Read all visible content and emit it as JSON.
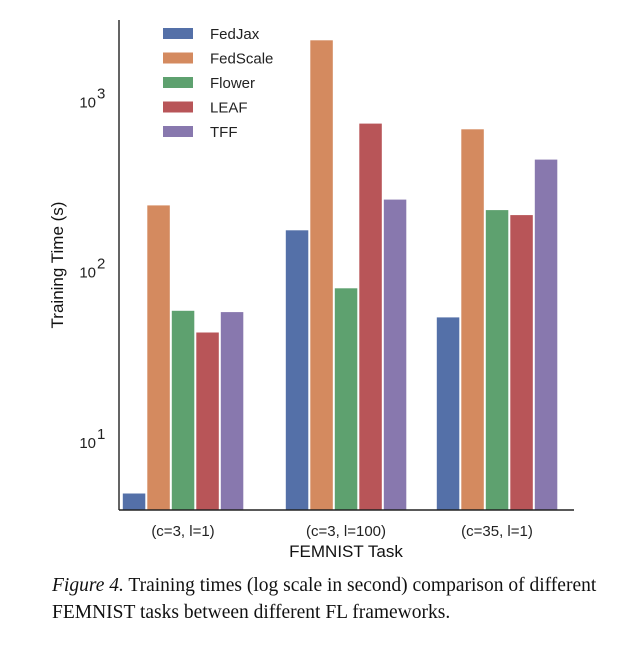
{
  "chart_data": {
    "type": "bar",
    "scale": "log",
    "title": "",
    "xlabel": "FEMNIST Task",
    "ylabel": "Training Time (s)",
    "categories": [
      "(c=3, l=1)",
      "(c=3, l=100)",
      "(c=35, l=1)"
    ],
    "ylim": [
      4,
      3000
    ],
    "yticks": [
      {
        "value": 10,
        "base": "10",
        "exp": "1"
      },
      {
        "value": 100,
        "base": "10",
        "exp": "2"
      },
      {
        "value": 1000,
        "base": "10",
        "exp": "3"
      }
    ],
    "grid": false,
    "legend_position": "top-left",
    "series": [
      {
        "name": "FedJax",
        "color": "#5470a8",
        "values": [
          5,
          175,
          54
        ]
      },
      {
        "name": "FedScale",
        "color": "#d48a5f",
        "values": [
          245,
          2280,
          685
        ]
      },
      {
        "name": "Flower",
        "color": "#5ea16f",
        "values": [
          59,
          80,
          230
        ]
      },
      {
        "name": "LEAF",
        "color": "#b85558",
        "values": [
          44,
          740,
          215
        ]
      },
      {
        "name": "TFF",
        "color": "#8878ae",
        "values": [
          58,
          265,
          455
        ]
      }
    ]
  },
  "caption": {
    "figure_label": "Figure 4.",
    "text": " Training times (log scale in second) comparison of different FEMNIST tasks between different FL frameworks."
  }
}
